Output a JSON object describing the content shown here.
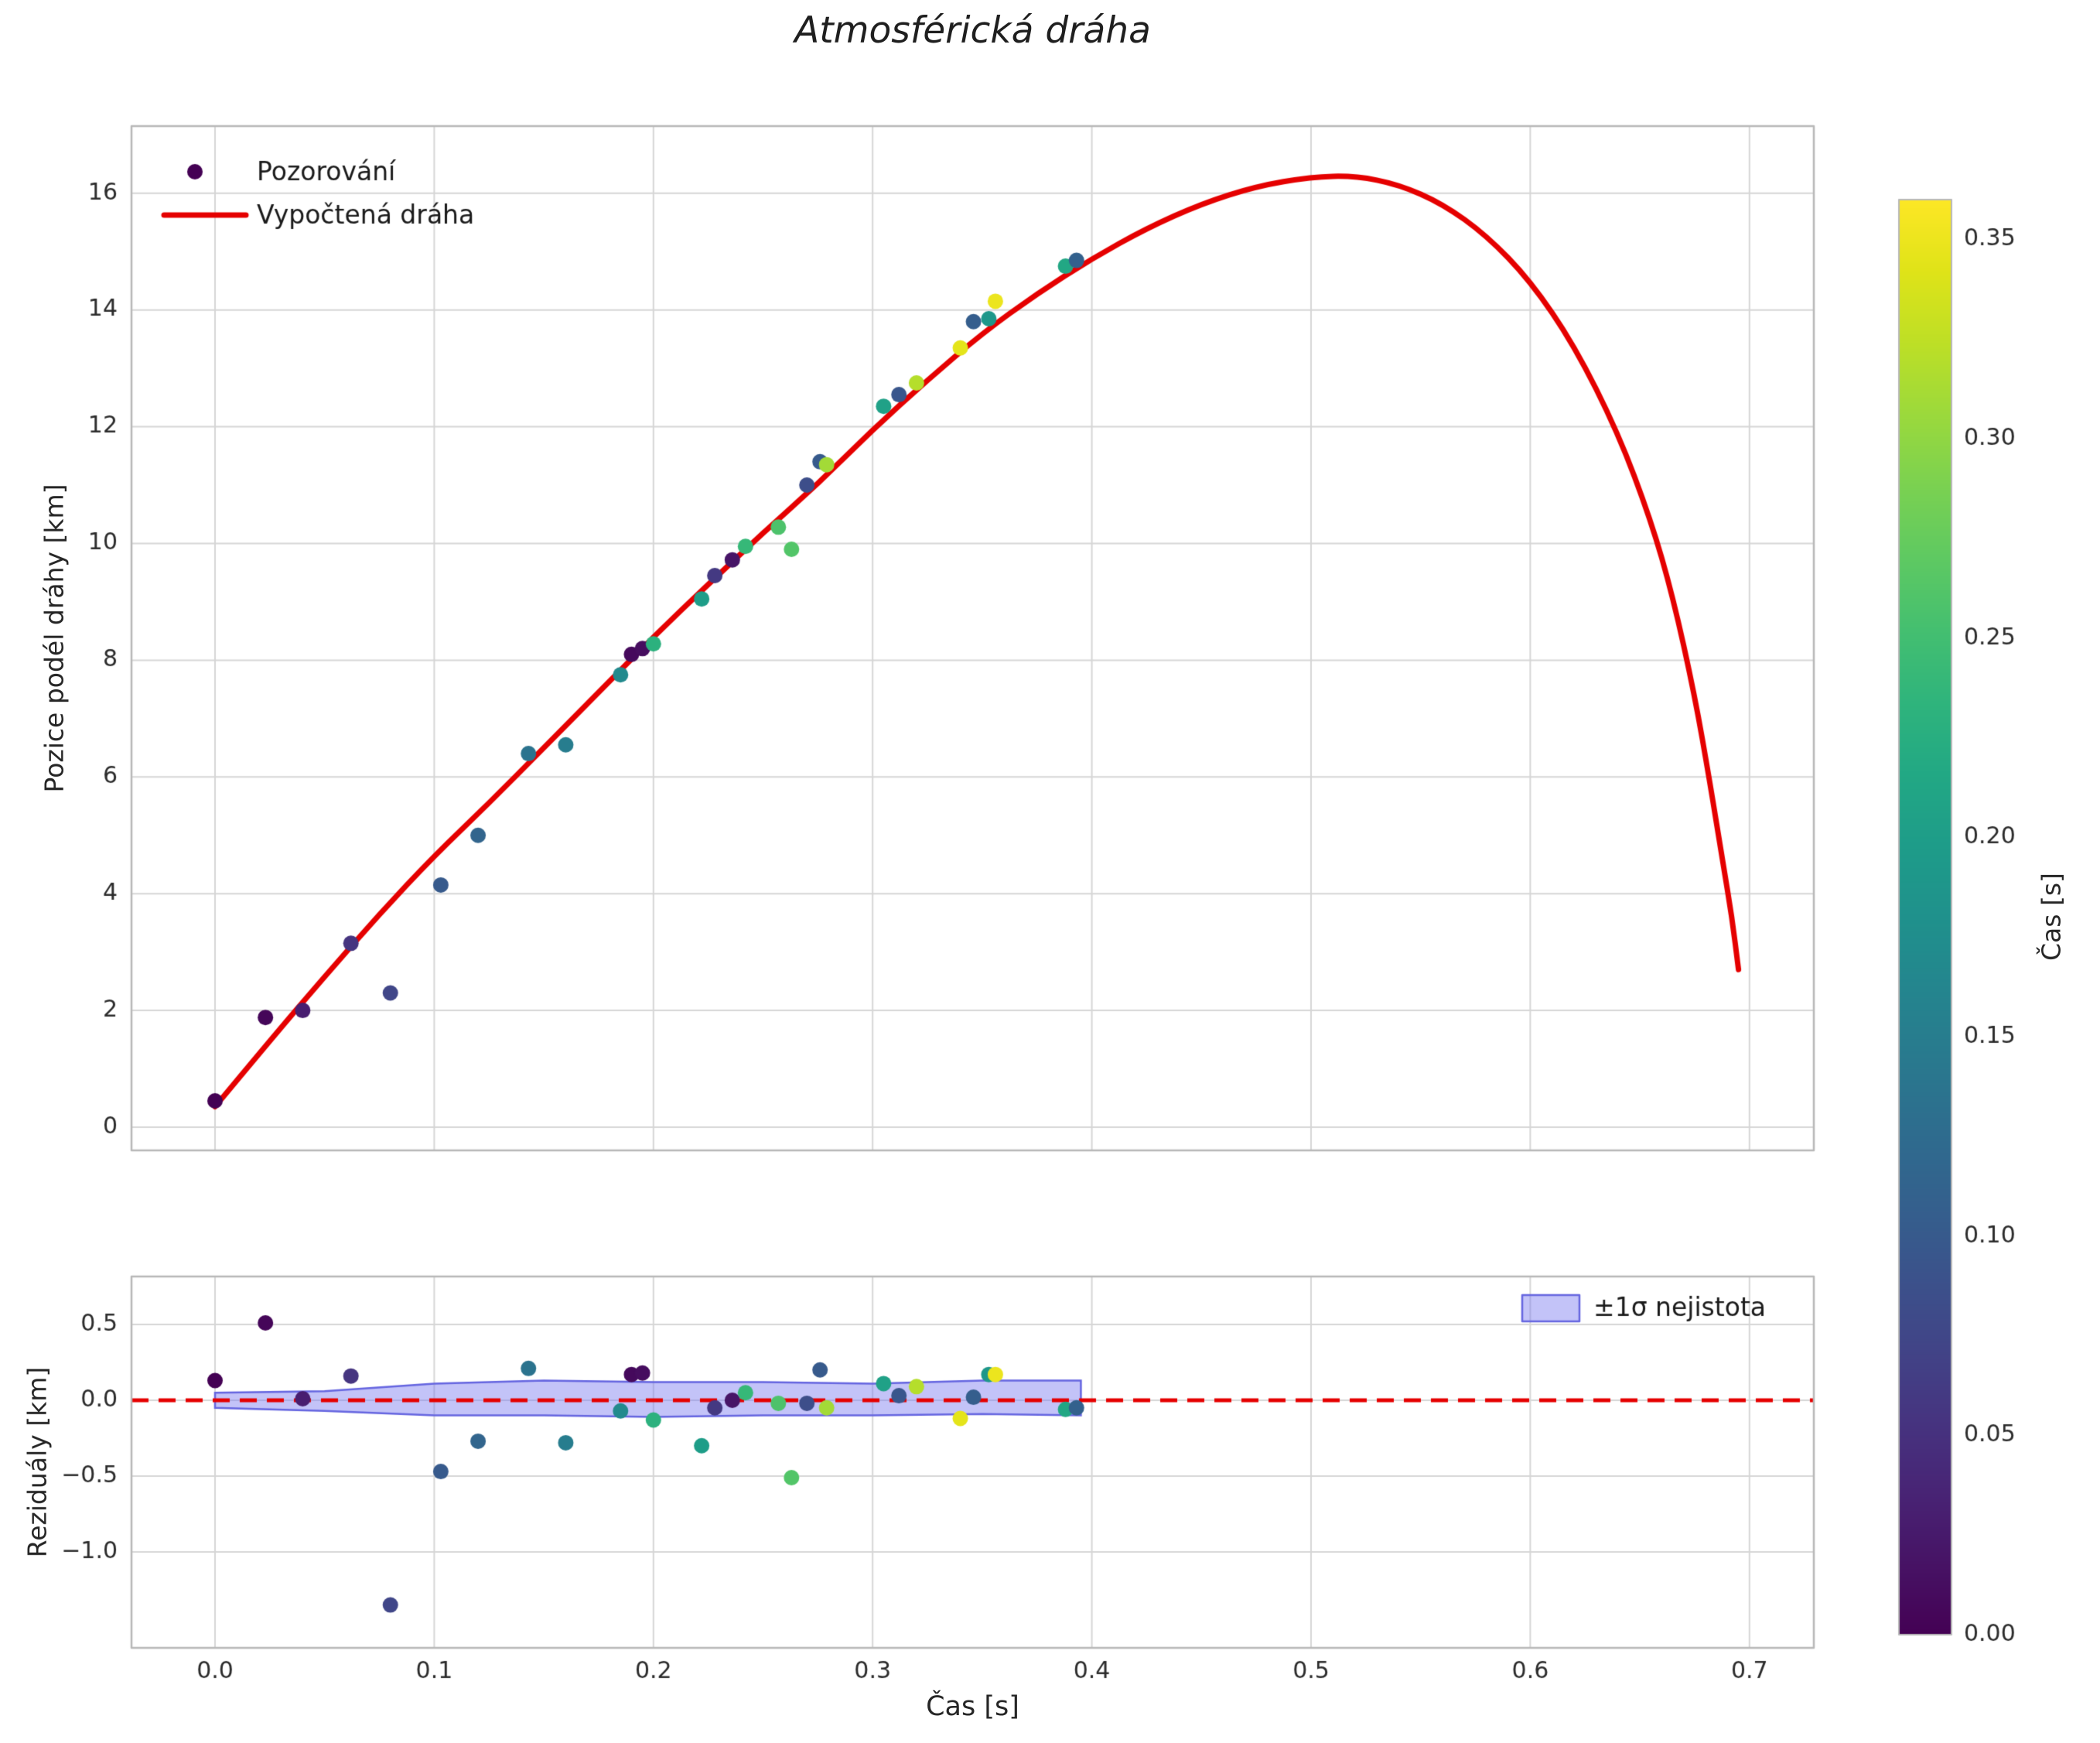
{
  "figure": {
    "title": "Atmosférická dráha",
    "background": "#ffffff"
  },
  "colorbar": {
    "label": "Čas [s]",
    "colormap": "viridis",
    "vmin": 0.0,
    "vmax": 0.36,
    "tick_values": [
      0.0,
      0.05,
      0.1,
      0.15,
      0.2,
      0.25,
      0.3,
      0.35
    ],
    "tick_labels": [
      "0.00",
      "0.05",
      "0.10",
      "0.15",
      "0.20",
      "0.25",
      "0.30",
      "0.35"
    ]
  },
  "chart_data": [
    {
      "type": "scatter",
      "title": "Atmosférická dráha",
      "xlabel": "",
      "ylabel": "Pozice podél dráhy [km]",
      "xlim": [
        -0.038,
        0.729
      ],
      "ylim": [
        -0.4,
        17.15
      ],
      "grid": true,
      "legend_position": "upper left",
      "legend": [
        {
          "label": "Pozorování",
          "type": "point",
          "color": "#440154"
        },
        {
          "label": "Vypočtená dráha",
          "type": "line",
          "color": "#e50000"
        }
      ],
      "xgrid": [
        0.0,
        0.1,
        0.2,
        0.3,
        0.4,
        0.5,
        0.6,
        0.7
      ],
      "yticks": {
        "values": [
          0,
          2,
          4,
          6,
          8,
          10,
          12,
          14,
          16
        ],
        "labels": [
          "0",
          "2",
          "4",
          "6",
          "8",
          "10",
          "12",
          "14",
          "16"
        ]
      },
      "points": [
        {
          "t": 0.0,
          "y": 0.45,
          "c": 0.0
        },
        {
          "t": 0.023,
          "y": 1.88,
          "c": 0.005
        },
        {
          "t": 0.04,
          "y": 2.0,
          "c": 0.03
        },
        {
          "t": 0.062,
          "y": 3.15,
          "c": 0.055
        },
        {
          "t": 0.08,
          "y": 2.3,
          "c": 0.075
        },
        {
          "t": 0.103,
          "y": 4.15,
          "c": 0.1
        },
        {
          "t": 0.12,
          "y": 5.0,
          "c": 0.115
        },
        {
          "t": 0.143,
          "y": 6.4,
          "c": 0.135
        },
        {
          "t": 0.16,
          "y": 6.55,
          "c": 0.15
        },
        {
          "t": 0.185,
          "y": 7.75,
          "c": 0.17
        },
        {
          "t": 0.19,
          "y": 8.1,
          "c": 0.008
        },
        {
          "t": 0.195,
          "y": 8.2,
          "c": 0.012
        },
        {
          "t": 0.2,
          "y": 8.28,
          "c": 0.23
        },
        {
          "t": 0.222,
          "y": 9.05,
          "c": 0.2
        },
        {
          "t": 0.228,
          "y": 9.45,
          "c": 0.06
        },
        {
          "t": 0.236,
          "y": 9.72,
          "c": 0.02
        },
        {
          "t": 0.242,
          "y": 9.95,
          "c": 0.24
        },
        {
          "t": 0.257,
          "y": 10.28,
          "c": 0.258
        },
        {
          "t": 0.263,
          "y": 9.9,
          "c": 0.262
        },
        {
          "t": 0.27,
          "y": 11.0,
          "c": 0.085
        },
        {
          "t": 0.276,
          "y": 11.4,
          "c": 0.1
        },
        {
          "t": 0.279,
          "y": 11.35,
          "c": 0.31
        },
        {
          "t": 0.305,
          "y": 12.35,
          "c": 0.205
        },
        {
          "t": 0.312,
          "y": 12.55,
          "c": 0.095
        },
        {
          "t": 0.32,
          "y": 12.75,
          "c": 0.32
        },
        {
          "t": 0.34,
          "y": 13.35,
          "c": 0.345
        },
        {
          "t": 0.346,
          "y": 13.8,
          "c": 0.105
        },
        {
          "t": 0.353,
          "y": 13.85,
          "c": 0.19
        },
        {
          "t": 0.356,
          "y": 14.15,
          "c": 0.35
        },
        {
          "t": 0.388,
          "y": 14.75,
          "c": 0.215
        },
        {
          "t": 0.393,
          "y": 14.85,
          "c": 0.11
        }
      ],
      "curve": {
        "name": "Vypočtená dráha",
        "color": "#e50000",
        "x": [
          0.0,
          0.025,
          0.05,
          0.075,
          0.1,
          0.125,
          0.15,
          0.175,
          0.2,
          0.225,
          0.25,
          0.275,
          0.3,
          0.325,
          0.35,
          0.375,
          0.4,
          0.425,
          0.45,
          0.475,
          0.5,
          0.52,
          0.54,
          0.56,
          0.58,
          0.6,
          0.62,
          0.64,
          0.655,
          0.665,
          0.675,
          0.682,
          0.688,
          0.692,
          0.695
        ],
        "y": [
          0.35,
          1.48,
          2.58,
          3.65,
          4.65,
          5.55,
          6.5,
          7.45,
          8.4,
          9.3,
          10.18,
          11.02,
          11.95,
          12.8,
          13.6,
          14.28,
          14.88,
          15.4,
          15.82,
          16.12,
          16.28,
          16.3,
          16.15,
          15.82,
          15.28,
          14.5,
          13.4,
          11.9,
          10.4,
          9.1,
          7.4,
          5.9,
          4.5,
          3.6,
          2.7
        ]
      }
    },
    {
      "type": "scatter",
      "xlabel": "Čas [s]",
      "ylabel": "Reziduály [km]",
      "xlim": [
        -0.038,
        0.729
      ],
      "ylim": [
        -1.63,
        0.82
      ],
      "grid": true,
      "legend_position": "upper right",
      "xticks": {
        "values": [
          0.0,
          0.1,
          0.2,
          0.3,
          0.4,
          0.5,
          0.6,
          0.7
        ],
        "labels": [
          "0.0",
          "0.1",
          "0.2",
          "0.3",
          "0.4",
          "0.5",
          "0.6",
          "0.7"
        ]
      },
      "yticks": {
        "values": [
          -1.0,
          -0.5,
          0.0,
          0.5
        ],
        "labels": [
          "−1.0",
          "−0.5",
          "0.0",
          "0.5"
        ]
      },
      "zero_line": {
        "y": 0,
        "color": "#e50000",
        "dashed": true
      },
      "band": {
        "label": "±1σ nejistota",
        "fill": "#7b7bf0",
        "fill_alpha": 0.45,
        "edge": "#6565e0",
        "x": [
          0.0,
          0.05,
          0.1,
          0.15,
          0.2,
          0.25,
          0.3,
          0.35,
          0.395
        ],
        "upper": [
          0.05,
          0.06,
          0.11,
          0.13,
          0.12,
          0.12,
          0.11,
          0.13,
          0.13
        ],
        "lower": [
          -0.05,
          -0.07,
          -0.1,
          -0.1,
          -0.11,
          -0.1,
          -0.1,
          -0.09,
          -0.1
        ]
      },
      "points": [
        {
          "t": 0.0,
          "r": 0.13,
          "c": 0.0
        },
        {
          "t": 0.023,
          "r": 0.51,
          "c": 0.005
        },
        {
          "t": 0.04,
          "r": 0.01,
          "c": 0.03
        },
        {
          "t": 0.062,
          "r": 0.16,
          "c": 0.055
        },
        {
          "t": 0.08,
          "r": -1.35,
          "c": 0.075
        },
        {
          "t": 0.103,
          "r": -0.47,
          "c": 0.1
        },
        {
          "t": 0.12,
          "r": -0.27,
          "c": 0.115
        },
        {
          "t": 0.143,
          "r": 0.21,
          "c": 0.135
        },
        {
          "t": 0.16,
          "r": -0.28,
          "c": 0.15
        },
        {
          "t": 0.185,
          "r": -0.07,
          "c": 0.17
        },
        {
          "t": 0.19,
          "r": 0.17,
          "c": 0.008
        },
        {
          "t": 0.195,
          "r": 0.18,
          "c": 0.012
        },
        {
          "t": 0.2,
          "r": -0.13,
          "c": 0.23
        },
        {
          "t": 0.222,
          "r": -0.3,
          "c": 0.2
        },
        {
          "t": 0.228,
          "r": -0.05,
          "c": 0.06
        },
        {
          "t": 0.236,
          "r": 0.0,
          "c": 0.02
        },
        {
          "t": 0.242,
          "r": 0.05,
          "c": 0.24
        },
        {
          "t": 0.257,
          "r": -0.02,
          "c": 0.258
        },
        {
          "t": 0.263,
          "r": -0.51,
          "c": 0.262
        },
        {
          "t": 0.27,
          "r": -0.02,
          "c": 0.085
        },
        {
          "t": 0.276,
          "r": 0.2,
          "c": 0.1
        },
        {
          "t": 0.279,
          "r": -0.05,
          "c": 0.31
        },
        {
          "t": 0.305,
          "r": 0.11,
          "c": 0.205
        },
        {
          "t": 0.312,
          "r": 0.03,
          "c": 0.095
        },
        {
          "t": 0.32,
          "r": 0.09,
          "c": 0.32
        },
        {
          "t": 0.34,
          "r": -0.12,
          "c": 0.345
        },
        {
          "t": 0.346,
          "r": 0.02,
          "c": 0.105
        },
        {
          "t": 0.353,
          "r": 0.17,
          "c": 0.19
        },
        {
          "t": 0.356,
          "r": 0.17,
          "c": 0.35
        },
        {
          "t": 0.388,
          "r": -0.06,
          "c": 0.215
        },
        {
          "t": 0.393,
          "r": -0.05,
          "c": 0.11
        }
      ]
    }
  ]
}
